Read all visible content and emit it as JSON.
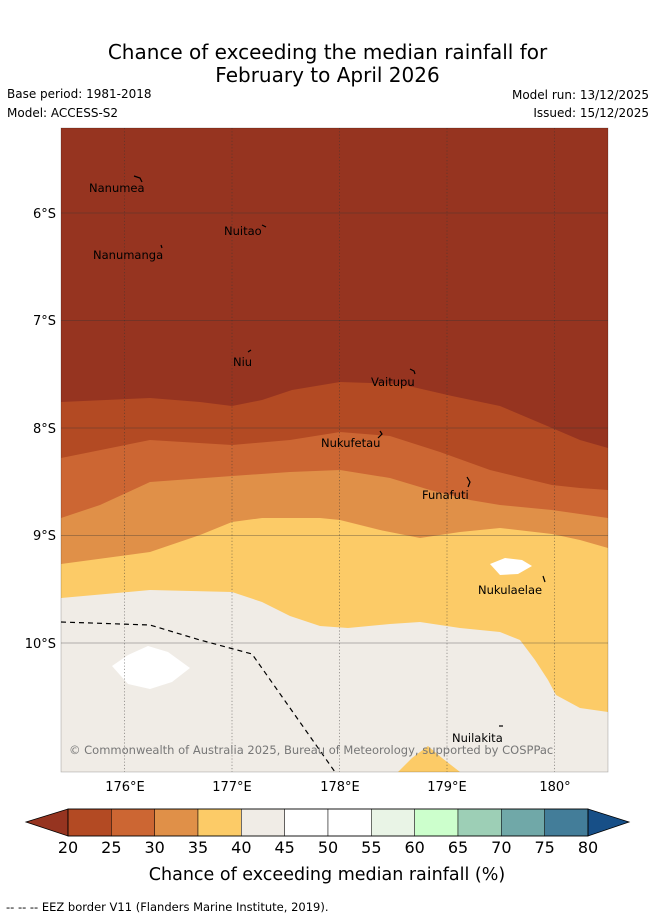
{
  "header": {
    "title_line1": "Chance of exceeding the median rainfall for",
    "title_line2": "February to April 2026",
    "base_period": "Base period: 1981-2018",
    "model": "Model: ACCESS-S2",
    "model_run": "Model run: 13/12/2025",
    "issued": "Issued: 15/12/2025"
  },
  "map": {
    "lat_labels": [
      "6°S",
      "7°S",
      "8°S",
      "9°S",
      "10°S"
    ],
    "lon_labels": [
      "176°E",
      "177°E",
      "178°E",
      "179°E",
      "180°"
    ],
    "islands": [
      "Nanumea",
      "Nuitao",
      "Nanumanga",
      "Niu",
      "Vaitupu",
      "Nukufetau",
      "Funafuti",
      "Nukulaelae",
      "Nuilakita"
    ],
    "copyright": "© Commonwealth of Australia 2025, Bureau of Meteorology, supported by COSPPac"
  },
  "colorbar": {
    "ticks": [
      "20",
      "25",
      "30",
      "35",
      "40",
      "45",
      "50",
      "55",
      "60",
      "65",
      "70",
      "75",
      "80"
    ],
    "colors": [
      "#b34a23",
      "#cc6633",
      "#e09048",
      "#fccb67",
      "#f0ece6",
      "#ffffff",
      "#ffffff",
      "#e9f4e6",
      "#ccffcc",
      "#9dcfb6",
      "#70a8a8",
      "#437d99"
    ],
    "low_color": "#963420",
    "high_color": "#174f87",
    "label": "Chance of exceeding median rainfall (%)"
  },
  "footer": {
    "legend": "-- --  -- EEZ border V11 (Flanders Marine Institute, 2019)."
  }
}
